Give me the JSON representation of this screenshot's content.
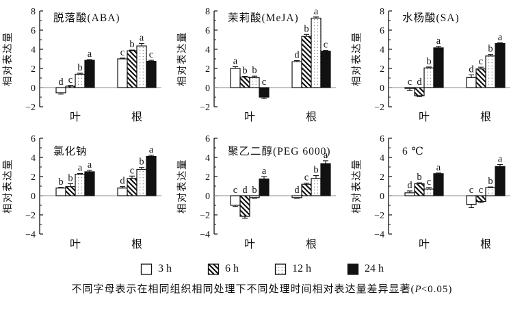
{
  "figure": {
    "ylabel": "相对表达量",
    "categories": [
      "叶",
      "根"
    ],
    "legend": [
      {
        "label": "3 h",
        "pattern": "white"
      },
      {
        "label": "6 h",
        "pattern": "hatch"
      },
      {
        "label": "12 h",
        "pattern": "dots"
      },
      {
        "label": "24 h",
        "pattern": "black"
      }
    ],
    "caption": {
      "prefix": "不同字母表示在相同组织相同处理下不同处理时间相对表达量差异显著(",
      "p_symbol": "P",
      "suffix": "<0.05)"
    },
    "colors": {
      "ink": "#111111",
      "zero_line": "#8c8c8c",
      "background": "#ffffff"
    }
  },
  "chart_data": [
    {
      "type": "bar",
      "title": "脱落酸(ABA)",
      "ylabel": "相对表达量",
      "ylim": [
        -2,
        8
      ],
      "yticks": [
        -2,
        0,
        2,
        4,
        6,
        8
      ],
      "categories": [
        "叶",
        "根"
      ],
      "series": [
        {
          "name": "3 h",
          "pattern": "white",
          "values": [
            -0.55,
            3.0
          ],
          "errors": [
            0.12,
            0.08
          ],
          "letters": [
            "d",
            "c"
          ]
        },
        {
          "name": "6 h",
          "pattern": "hatch",
          "values": [
            0.15,
            3.85
          ],
          "errors": [
            0.07,
            0.07
          ],
          "letters": [
            "c",
            "b"
          ]
        },
        {
          "name": "12 h",
          "pattern": "dots",
          "values": [
            1.4,
            4.35
          ],
          "errors": [
            0.1,
            0.25
          ],
          "letters": [
            "b",
            "a"
          ]
        },
        {
          "name": "24 h",
          "pattern": "black",
          "values": [
            2.85,
            2.75
          ],
          "errors": [
            0.07,
            0.1
          ],
          "letters": [
            "a",
            "c"
          ]
        }
      ]
    },
    {
      "type": "bar",
      "title": "茉莉酸(MeJA)",
      "ylabel": "相对表达量",
      "ylim": [
        -2,
        8
      ],
      "yticks": [
        -2,
        0,
        2,
        4,
        6,
        8
      ],
      "categories": [
        "叶",
        "根"
      ],
      "series": [
        {
          "name": "3 h",
          "pattern": "white",
          "values": [
            2.0,
            2.7
          ],
          "errors": [
            0.18,
            0.12
          ],
          "letters": [
            "a",
            "d"
          ]
        },
        {
          "name": "6 h",
          "pattern": "hatch",
          "values": [
            1.1,
            5.35
          ],
          "errors": [
            0.07,
            0.2
          ],
          "letters": [
            "b",
            "b"
          ]
        },
        {
          "name": "12 h",
          "pattern": "dots",
          "values": [
            1.05,
            7.25
          ],
          "errors": [
            0.15,
            0.12
          ],
          "letters": [
            "b",
            "a"
          ]
        },
        {
          "name": "24 h",
          "pattern": "black",
          "values": [
            -1.0,
            3.8
          ],
          "errors": [
            0.15,
            0.08
          ],
          "letters": [
            "c",
            "c"
          ]
        }
      ]
    },
    {
      "type": "bar",
      "title": "水杨酸(SA)",
      "ylabel": "相对表达量",
      "ylim": [
        -2,
        8
      ],
      "yticks": [
        -2,
        0,
        2,
        4,
        6,
        8
      ],
      "categories": [
        "叶",
        "根"
      ],
      "series": [
        {
          "name": "3 h",
          "pattern": "white",
          "values": [
            -0.08,
            1.05
          ],
          "errors": [
            0.22,
            0.28
          ],
          "letters": [
            "c",
            "d"
          ]
        },
        {
          "name": "6 h",
          "pattern": "hatch",
          "values": [
            -0.85,
            1.95
          ],
          "errors": [
            0.1,
            0.18
          ],
          "letters": [
            "d",
            "c"
          ]
        },
        {
          "name": "12 h",
          "pattern": "dots",
          "values": [
            2.05,
            3.3
          ],
          "errors": [
            0.1,
            0.15
          ],
          "letters": [
            "b",
            "b"
          ]
        },
        {
          "name": "24 h",
          "pattern": "black",
          "values": [
            4.15,
            4.6
          ],
          "errors": [
            0.15,
            0.07
          ],
          "letters": [
            "a",
            "a"
          ]
        }
      ]
    },
    {
      "type": "bar",
      "title": "氯化钠",
      "ylabel": "相对表达量",
      "ylim": [
        -4,
        6
      ],
      "yticks": [
        -4,
        -2,
        0,
        2,
        4,
        6
      ],
      "categories": [
        "叶",
        "根"
      ],
      "series": [
        {
          "name": "3 h",
          "pattern": "white",
          "values": [
            0.8,
            0.8
          ],
          "errors": [
            0.07,
            0.15
          ],
          "letters": [
            "b",
            "d"
          ]
        },
        {
          "name": "6 h",
          "pattern": "hatch",
          "values": [
            0.95,
            1.8
          ],
          "errors": [
            0.3,
            0.25
          ],
          "letters": [
            "b",
            "c"
          ]
        },
        {
          "name": "12 h",
          "pattern": "dots",
          "values": [
            2.25,
            2.75
          ],
          "errors": [
            0.07,
            0.2
          ],
          "letters": [
            "a",
            "b"
          ]
        },
        {
          "name": "24 h",
          "pattern": "black",
          "values": [
            2.5,
            4.1
          ],
          "errors": [
            0.15,
            0.12
          ],
          "letters": [
            "a",
            "a"
          ]
        }
      ]
    },
    {
      "type": "bar",
      "title": "聚乙二醇(PEG 6000)",
      "ylabel": "相对表达量",
      "ylim": [
        -4,
        6
      ],
      "yticks": [
        -4,
        -2,
        0,
        2,
        4,
        6
      ],
      "categories": [
        "叶",
        "根"
      ],
      "series": [
        {
          "name": "3 h",
          "pattern": "white",
          "values": [
            -1.0,
            -0.2
          ],
          "errors": [
            0.12,
            0.07
          ],
          "letters": [
            "c",
            "d"
          ]
        },
        {
          "name": "6 h",
          "pattern": "hatch",
          "values": [
            -2.15,
            1.2
          ],
          "errors": [
            0.2,
            0.12
          ],
          "letters": [
            "d",
            "c"
          ]
        },
        {
          "name": "12 h",
          "pattern": "dots",
          "values": [
            -0.2,
            1.8
          ],
          "errors": [
            0.07,
            0.3
          ],
          "letters": [
            "b",
            "b"
          ]
        },
        {
          "name": "24 h",
          "pattern": "black",
          "values": [
            1.75,
            3.35
          ],
          "errors": [
            0.25,
            0.3
          ],
          "letters": [
            "a",
            "a"
          ]
        }
      ]
    },
    {
      "type": "bar",
      "title": "6 ℃",
      "ylabel": "相对表达量",
      "ylim": [
        -4,
        6
      ],
      "yticks": [
        -4,
        -2,
        0,
        2,
        4,
        6
      ],
      "categories": [
        "叶",
        "根"
      ],
      "series": [
        {
          "name": "3 h",
          "pattern": "white",
          "values": [
            0.3,
            -0.9
          ],
          "errors": [
            0.2,
            0.35
          ],
          "letters": [
            "d",
            "c"
          ]
        },
        {
          "name": "6 h",
          "pattern": "hatch",
          "values": [
            1.25,
            -0.6
          ],
          "errors": [
            0.1,
            0.12
          ],
          "letters": [
            "b",
            "c"
          ]
        },
        {
          "name": "12 h",
          "pattern": "dots",
          "values": [
            0.7,
            0.85
          ],
          "errors": [
            0.15,
            0.07
          ],
          "letters": [
            "c",
            "b"
          ]
        },
        {
          "name": "24 h",
          "pattern": "black",
          "values": [
            2.3,
            3.05
          ],
          "errors": [
            0.07,
            0.2
          ],
          "letters": [
            "a",
            "a"
          ]
        }
      ]
    }
  ]
}
